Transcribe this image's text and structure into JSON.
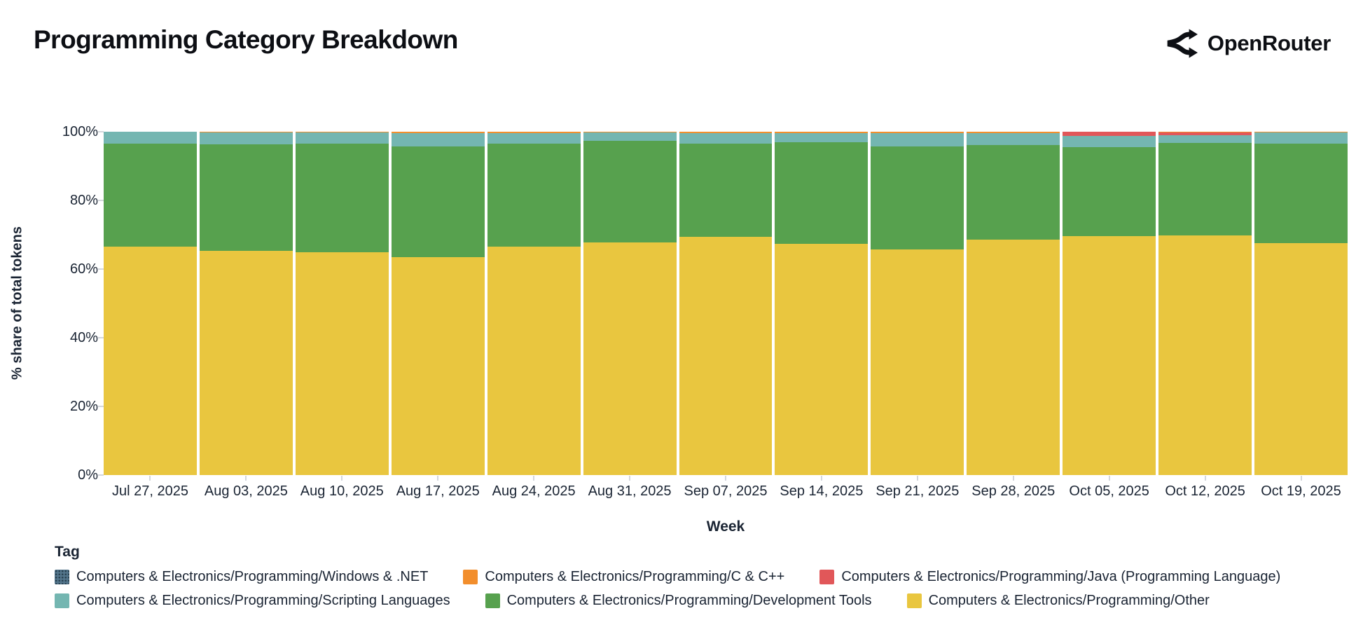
{
  "header": {
    "title": "Programming Category Breakdown",
    "brand": "OpenRouter"
  },
  "colors": {
    "other": "#e9c63f",
    "development_tools": "#57a14e",
    "scripting_languages": "#74b6b1",
    "java": "#e15759",
    "c_cpp": "#f28e2c",
    "windows_dotnet": "#52748a",
    "axis_text": "#1a2433",
    "background": "#ffffff"
  },
  "chart_data": {
    "type": "bar",
    "stacked": true,
    "title": "Programming Category Breakdown",
    "xlabel": "Week",
    "ylabel": "% share of total tokens",
    "ylim": [
      0,
      100
    ],
    "y_ticks": [
      0,
      20,
      40,
      60,
      80,
      100
    ],
    "y_tick_labels": [
      "0%",
      "20%",
      "40%",
      "60%",
      "80%",
      "100%"
    ],
    "grid": false,
    "legend_position": "bottom",
    "categories": [
      "Jul 27, 2025",
      "Aug 03, 2025",
      "Aug 10, 2025",
      "Aug 17, 2025",
      "Aug 24, 2025",
      "Aug 31, 2025",
      "Sep 07, 2025",
      "Sep 14, 2025",
      "Sep 21, 2025",
      "Sep 28, 2025",
      "Oct 05, 2025",
      "Oct 12, 2025",
      "Oct 19, 2025"
    ],
    "series": [
      {
        "name": "Computers & Electronics/Programming/Other",
        "color": "#e9c63f",
        "values": [
          66.5,
          65.4,
          64.8,
          63.5,
          66.6,
          67.8,
          69.3,
          67.4,
          65.8,
          68.6,
          69.5,
          69.7,
          67.6
        ]
      },
      {
        "name": "Computers & Electronics/Programming/Development Tools",
        "color": "#57a14e",
        "values": [
          30.0,
          30.9,
          31.7,
          32.2,
          29.9,
          29.5,
          27.2,
          29.6,
          29.9,
          27.5,
          26.0,
          27.0,
          28.9
        ]
      },
      {
        "name": "Computers & Electronics/Programming/Scripting Languages",
        "color": "#74b6b1",
        "values": [
          3.5,
          3.4,
          3.2,
          4.0,
          3.2,
          2.4,
          3.2,
          2.7,
          4.0,
          3.6,
          3.3,
          2.2,
          3.2
        ]
      },
      {
        "name": "Computers & Electronics/Programming/Java (Programming Language)",
        "color": "#e15759",
        "values": [
          0,
          0,
          0,
          0,
          0,
          0,
          0,
          0,
          0,
          0,
          1.2,
          0.9,
          0
        ]
      },
      {
        "name": "Computers & Electronics/Programming/C & C++",
        "color": "#f28e2c",
        "values": [
          0,
          0.3,
          0.3,
          0.3,
          0.3,
          0.3,
          0.3,
          0.3,
          0.3,
          0.3,
          0,
          0.2,
          0.3
        ]
      },
      {
        "name": "Computers & Electronics/Programming/Windows & .NET",
        "color": "#52748a",
        "pattern": "dots",
        "values": [
          0,
          0,
          0,
          0,
          0,
          0,
          0,
          0,
          0,
          0,
          0,
          0,
          0
        ]
      }
    ]
  },
  "legend": {
    "title": "Tag",
    "rows": [
      [
        {
          "label": "Computers & Electronics/Programming/Windows & .NET",
          "color": "#52748a",
          "pattern": true
        },
        {
          "label": "Computers & Electronics/Programming/C & C++",
          "color": "#f28e2c",
          "pattern": false
        },
        {
          "label": "Computers & Electronics/Programming/Java (Programming Language)",
          "color": "#e15759",
          "pattern": false
        }
      ],
      [
        {
          "label": "Computers & Electronics/Programming/Scripting Languages",
          "color": "#74b6b1",
          "pattern": false
        },
        {
          "label": "Computers & Electronics/Programming/Development Tools",
          "color": "#57a14e",
          "pattern": false
        },
        {
          "label": "Computers & Electronics/Programming/Other",
          "color": "#e9c63f",
          "pattern": false
        }
      ]
    ]
  }
}
